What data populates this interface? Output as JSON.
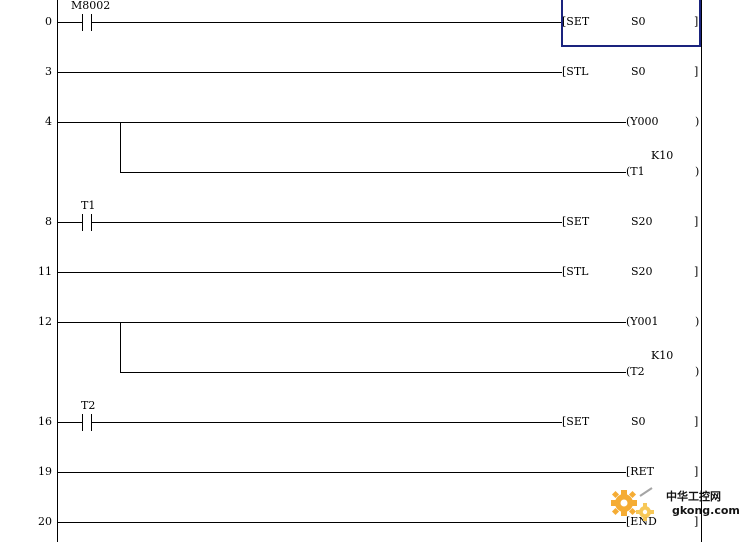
{
  "rungs": [
    {
      "step": "0",
      "contact": "M8002",
      "instruction": "[SET",
      "operand": "S0",
      "close": "]",
      "selected": true
    },
    {
      "step": "3",
      "contact": "",
      "instruction": "[STL",
      "operand": "S0",
      "close": "]"
    },
    {
      "step": "4",
      "contact": "",
      "coil": "(Y000",
      "close": ")"
    },
    {
      "step": "",
      "contact": "",
      "coil": "(T1",
      "constant": "K10",
      "close": ")",
      "branch": true
    },
    {
      "step": "8",
      "contact": "T1",
      "instruction": "[SET",
      "operand": "S20",
      "close": "]"
    },
    {
      "step": "11",
      "contact": "",
      "instruction": "[STL",
      "operand": "S20",
      "close": "]"
    },
    {
      "step": "12",
      "contact": "",
      "coil": "(Y001",
      "close": ")"
    },
    {
      "step": "",
      "contact": "",
      "coil": "(T2",
      "constant": "K10",
      "close": ")",
      "branch": true
    },
    {
      "step": "16",
      "contact": "T2",
      "instruction": "[SET",
      "operand": "S0",
      "close": "]"
    },
    {
      "step": "19",
      "contact": "",
      "instruction": "[RET",
      "operand": "",
      "close": "]"
    },
    {
      "step": "20",
      "contact": "",
      "instruction": "[END",
      "operand": "",
      "close": "]"
    }
  ],
  "watermark": {
    "brand": "中华工控网",
    "url": "gkong.com",
    "logo_icon": "gear-icon"
  },
  "colors": {
    "cursor": "#1a237e",
    "wire": "#000000",
    "watermark_orange": "#f5a623"
  }
}
